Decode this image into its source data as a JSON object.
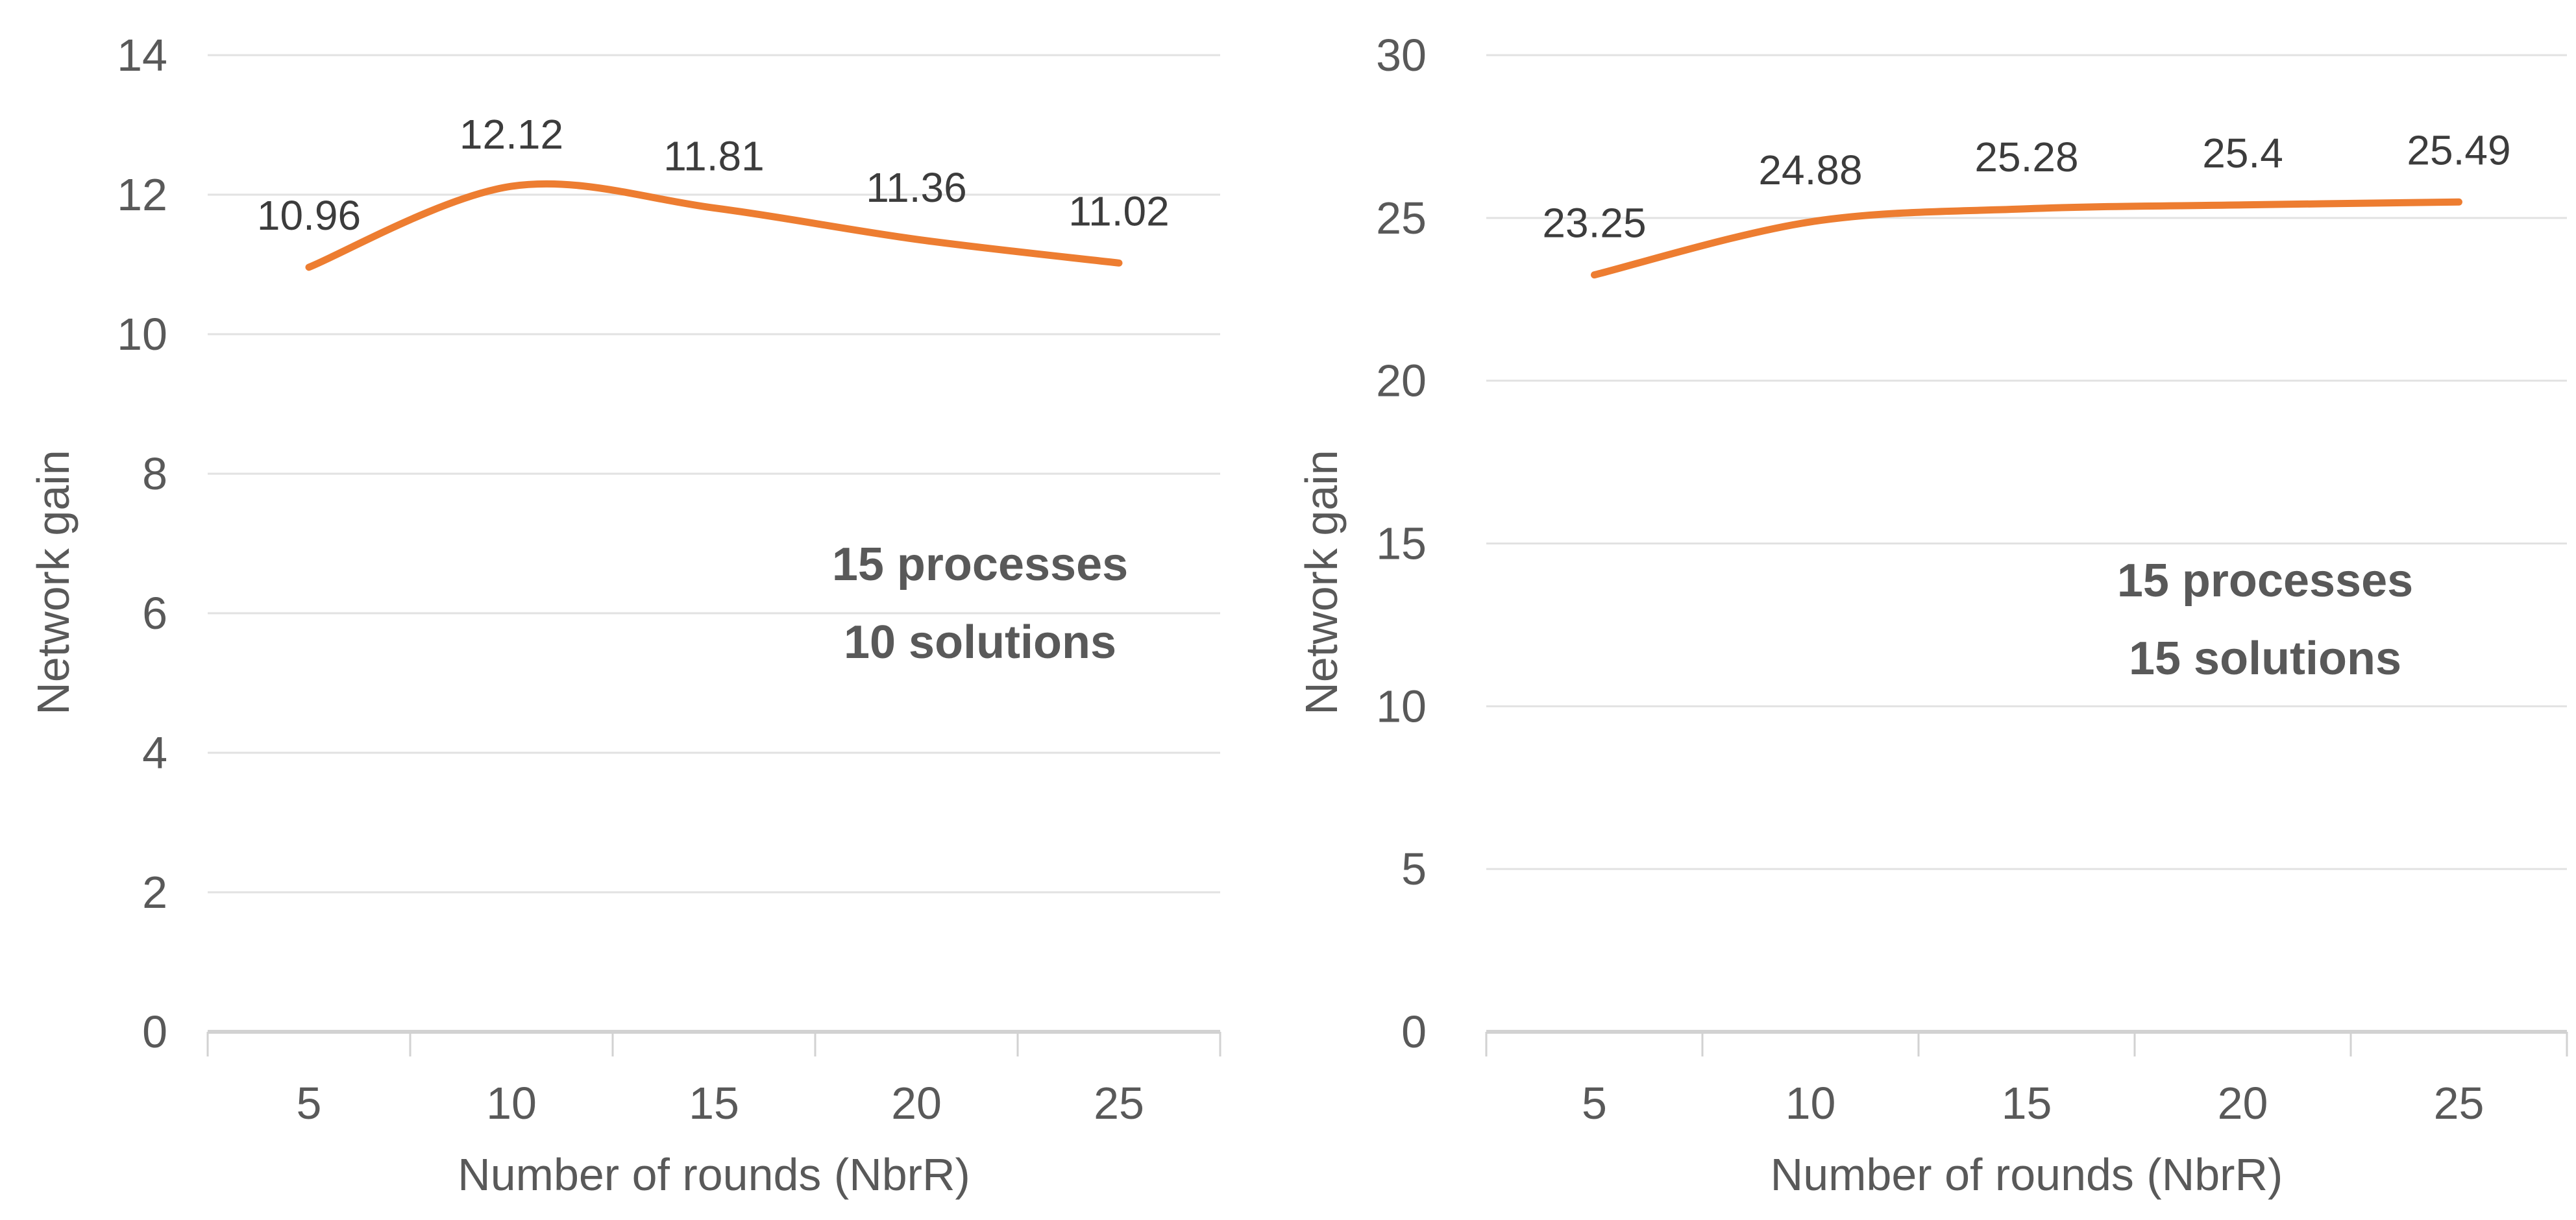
{
  "page": {
    "background": "#ffffff",
    "description": "Two line charts of network gain versus number of rounds"
  },
  "colors": {
    "line": "#ED7D31",
    "gridline": "#E2E2E2",
    "axis_line": "#D2D2D2",
    "tick_mark": "#D2D2D2",
    "tick_label": "#595959",
    "axis_title": "#595959",
    "data_label": "#3C3C3C",
    "annotation": "#595959"
  },
  "chart_data": [
    {
      "type": "line",
      "id": "left-chart",
      "x": [
        5,
        10,
        15,
        20,
        25
      ],
      "values": [
        10.96,
        12.12,
        11.81,
        11.36,
        11.02
      ],
      "data_labels": [
        "10.96",
        "12.12",
        "11.81",
        "11.36",
        "11.02"
      ],
      "xlabel": "Number of rounds (NbrR)",
      "ylabel": "Network gain",
      "xticks": [
        "5",
        "10",
        "15",
        "20",
        "25"
      ],
      "yticks": [
        0,
        2,
        4,
        6,
        8,
        10,
        12,
        14
      ],
      "ylim": [
        0,
        14
      ],
      "grid": true,
      "legend": "none",
      "smooth": true,
      "annotation_lines": [
        "15 processes",
        "10 solutions"
      ]
    },
    {
      "type": "line",
      "id": "right-chart",
      "x": [
        5,
        10,
        15,
        20,
        25
      ],
      "values": [
        23.25,
        24.88,
        25.28,
        25.4,
        25.49
      ],
      "data_labels": [
        "23.25",
        "24.88",
        "25.28",
        "25.4",
        "25.49"
      ],
      "xlabel": "Number of rounds (NbrR)",
      "ylabel": "Network gain",
      "xticks": [
        "5",
        "10",
        "15",
        "20",
        "25"
      ],
      "yticks": [
        0,
        5,
        10,
        15,
        20,
        25,
        30
      ],
      "ylim": [
        0,
        30
      ],
      "grid": true,
      "legend": "none",
      "smooth": true,
      "annotation_lines": [
        "15 processes",
        "15 solutions"
      ]
    }
  ]
}
